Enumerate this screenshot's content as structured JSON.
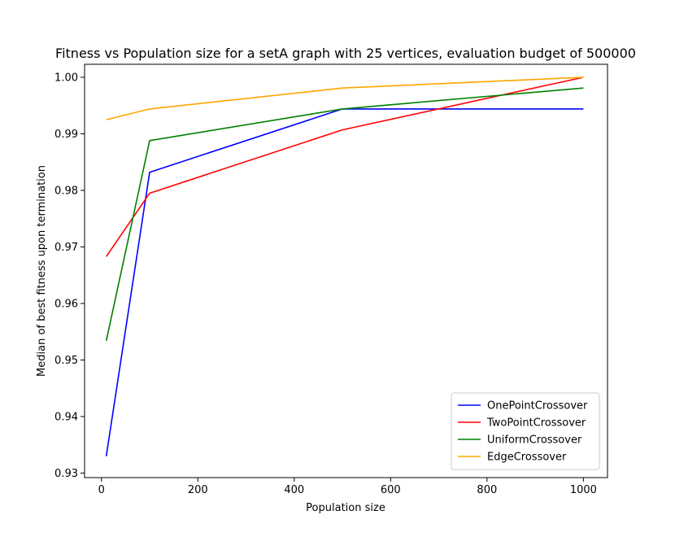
{
  "chart_data": {
    "type": "line",
    "title": "Fitness vs Population size for a setA graph with 25 vertices, evaluation budget of 500000",
    "xlabel": "Population size",
    "ylabel": "Median of best fitness upon termination",
    "xlim": [
      -35,
      1050
    ],
    "ylim": [
      0.9292,
      1.0023
    ],
    "xticks": [
      0,
      200,
      400,
      600,
      800,
      1000
    ],
    "yticks": [
      0.93,
      0.94,
      0.95,
      0.96,
      0.97,
      0.98,
      0.99,
      1.0
    ],
    "xtick_labels": [
      "0",
      "200",
      "400",
      "600",
      "800",
      "1000"
    ],
    "ytick_labels": [
      "0.93",
      "0.94",
      "0.95",
      "0.96",
      "0.97",
      "0.98",
      "0.99",
      "1.00"
    ],
    "x": [
      10,
      100,
      500,
      1000
    ],
    "series": [
      {
        "name": "OnePointCrossover",
        "color": "#0000ff",
        "values": [
          0.933,
          0.9832,
          0.9944,
          0.9944
        ]
      },
      {
        "name": "TwoPointCrossover",
        "color": "#ff0000",
        "values": [
          0.9683,
          0.9795,
          0.9907,
          1.0
        ]
      },
      {
        "name": "UniformCrossover",
        "color": "#008000",
        "values": [
          0.9534,
          0.9888,
          0.9944,
          0.9981
        ]
      },
      {
        "name": "EdgeCrossover",
        "color": "#ffa500",
        "values": [
          0.9925,
          0.9944,
          0.9981,
          1.0
        ]
      }
    ],
    "legend_position": "bottom-right",
    "grid": false
  }
}
